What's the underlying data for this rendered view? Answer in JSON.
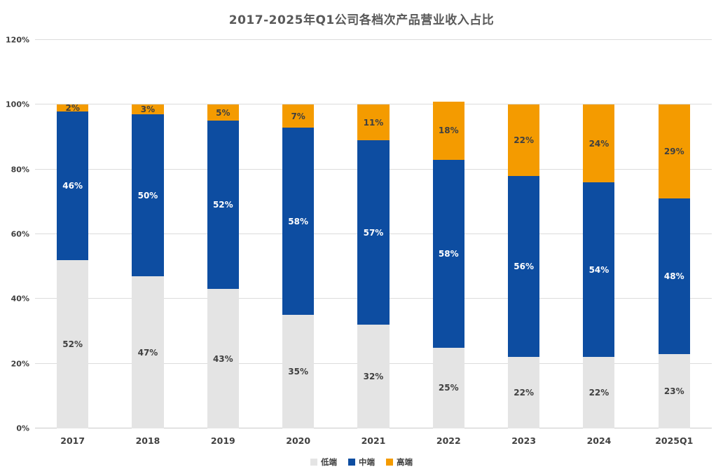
{
  "chart_data": {
    "type": "bar",
    "subtype": "stacked-percent",
    "title": "2017-2025年Q1公司各档次产品营业收入占比",
    "categories": [
      "2017",
      "2018",
      "2019",
      "2020",
      "2021",
      "2022",
      "2023",
      "2024",
      "2025Q1"
    ],
    "series": [
      {
        "name": "低端",
        "color": "#e4e4e4",
        "label_color": "#404040",
        "values": [
          52,
          47,
          43,
          35,
          32,
          25,
          22,
          22,
          23
        ]
      },
      {
        "name": "中端",
        "color": "#0d4da1",
        "label_color": "#ffffff",
        "values": [
          46,
          50,
          52,
          58,
          57,
          58,
          56,
          54,
          48
        ]
      },
      {
        "name": "高端",
        "color": "#f49b00",
        "label_color": "#404040",
        "values": [
          2,
          3,
          5,
          7,
          11,
          18,
          22,
          24,
          29
        ]
      }
    ],
    "value_suffix": "%",
    "y_axis": {
      "min": 0,
      "max": 120,
      "ticks": [
        {
          "label": "0%",
          "value": 0
        },
        {
          "label": "20%",
          "value": 20
        },
        {
          "label": "40%",
          "value": 40
        },
        {
          "label": "60%",
          "value": 60
        },
        {
          "label": "80%",
          "value": 80
        },
        {
          "label": "100%",
          "value": 100
        },
        {
          "label": "120%",
          "value": 120
        }
      ]
    },
    "grid": "horizontal",
    "legend_position": "bottom-center",
    "legend": [
      "低端",
      "中端",
      "高端"
    ]
  }
}
